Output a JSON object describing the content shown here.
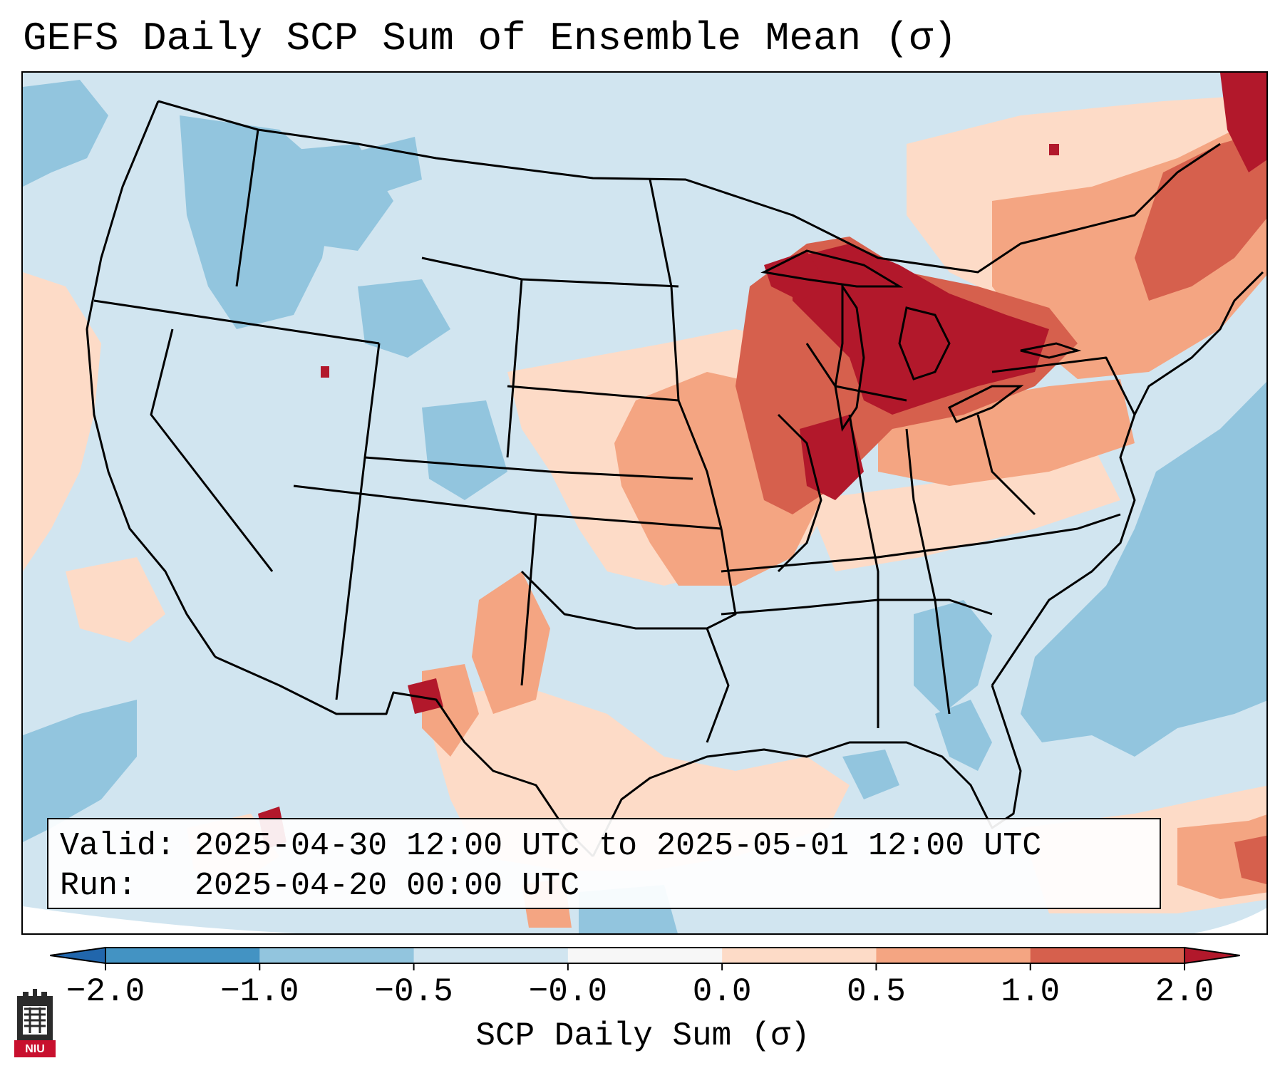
{
  "title": "GEFS Daily SCP Sum of Ensemble Mean (σ)",
  "info": {
    "valid_line": "Valid: 2025-04-30 12:00 UTC to 2025-05-01 12:00 UTC",
    "run_line": "Run:   2025-04-20 00:00 UTC"
  },
  "colorbar": {
    "label": "SCP Daily Sum (σ)",
    "tick_labels": [
      "−2.0",
      "−1.0",
      "−0.5",
      "−0.0",
      "0.0",
      "0.5",
      "1.0",
      "2.0"
    ],
    "bins": [
      {
        "min": -2.0,
        "max": -1.0,
        "color": "#4393c3"
      },
      {
        "min": -1.0,
        "max": -0.5,
        "color": "#92c5de"
      },
      {
        "min": -0.5,
        "max": -0.0,
        "color": "#d1e5f0"
      },
      {
        "min": -0.0,
        "max": 0.0,
        "color": "#f7f7f7"
      },
      {
        "min": 0.0,
        "max": 0.5,
        "color": "#fddbc7"
      },
      {
        "min": 0.5,
        "max": 1.0,
        "color": "#f4a582"
      },
      {
        "min": 1.0,
        "max": 2.0,
        "color": "#d6604d"
      }
    ],
    "under_color": "#2166ac",
    "over_color": "#b2182b",
    "extend": "both"
  },
  "map": {
    "region": "Contiguous United States",
    "colors": {
      "ocean_light_blue": "#d1e5f0",
      "mid_blue": "#92c5de",
      "light_red": "#fddbc7",
      "mid_red": "#f4a582",
      "red": "#d6604d",
      "dark_red": "#b2182b"
    }
  },
  "logo": {
    "text": "NIU",
    "icon": "niu-castle-logo-icon"
  }
}
